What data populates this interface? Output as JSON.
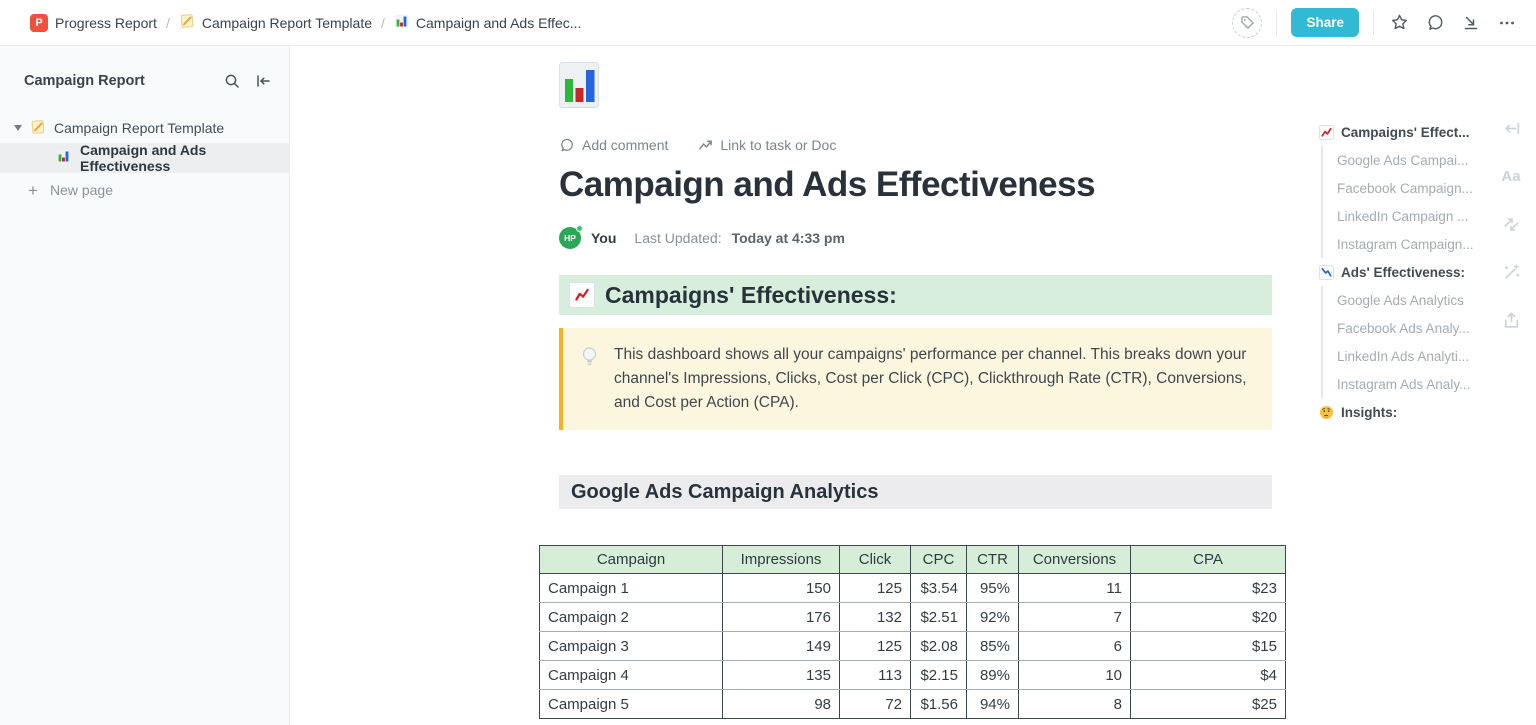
{
  "topbar": {
    "breadcrumb": [
      {
        "label": "Progress Report",
        "icon": "p-badge-icon"
      },
      {
        "label": "Campaign Report Template",
        "icon": "memo-icon"
      },
      {
        "label": "Campaign and Ads Effec...",
        "icon": "bar-chart-icon"
      }
    ],
    "separator": "/",
    "share_label": "Share"
  },
  "sidebar": {
    "title": "Campaign Report",
    "tree": [
      {
        "label": "Campaign Report Template",
        "icon": "memo-icon"
      },
      {
        "label": "Campaign and Ads Effectiveness",
        "icon": "bar-chart-icon",
        "selected": true
      }
    ],
    "new_page_label": "New page"
  },
  "document": {
    "actions": {
      "add_comment": "Add comment",
      "link_to_task": "Link to task or Doc"
    },
    "title": "Campaign and Ads Effectiveness",
    "author": {
      "initials": "HP",
      "name": "You"
    },
    "last_updated_label": "Last Updated:",
    "last_updated_value": "Today at 4:33 pm",
    "sections": [
      {
        "title": "Campaigns' Effectiveness:",
        "icon": "chart-up-icon",
        "style": "green"
      },
      {
        "title": "Google Ads Campaign Analytics",
        "style": "gray"
      }
    ],
    "callout": {
      "icon": "lightbulb-icon",
      "text": "This dashboard shows all your campaigns' performance per channel. This breaks down your channel's Impressions, Clicks, Cost per Click (CPC), Clickthrough Rate (CTR), Conversions, and Cost per Action (CPA)."
    },
    "table": {
      "headers": [
        "Campaign",
        "Impressions",
        "Click",
        "CPC",
        "CTR",
        "Conversions",
        "CPA"
      ],
      "rows": [
        [
          "Campaign 1",
          "150",
          "125",
          "$3.54",
          "95%",
          "11",
          "$23"
        ],
        [
          "Campaign 2",
          "176",
          "132",
          "$2.51",
          "92%",
          "7",
          "$20"
        ],
        [
          "Campaign 3",
          "149",
          "125",
          "$2.08",
          "85%",
          "6",
          "$15"
        ],
        [
          "Campaign 4",
          "135",
          "113",
          "$2.15",
          "89%",
          "10",
          "$4"
        ],
        [
          "Campaign 5",
          "98",
          "72",
          "$1.56",
          "94%",
          "8",
          "$25"
        ]
      ]
    }
  },
  "outline": {
    "items": [
      {
        "label": "Campaigns' Effect...",
        "icon": "chart-up-icon",
        "level": 1
      },
      {
        "label": "Google Ads Campai...",
        "level": 2
      },
      {
        "label": "Facebook Campaign...",
        "level": 2
      },
      {
        "label": "LinkedIn Campaign ...",
        "level": 2
      },
      {
        "label": "Instagram Campaign...",
        "level": 2
      },
      {
        "label": "Ads' Effectiveness:",
        "icon": "chart-down-icon",
        "level": 1
      },
      {
        "label": "Google Ads Analytics",
        "level": 2
      },
      {
        "label": "Facebook Ads Analy...",
        "level": 2
      },
      {
        "label": "LinkedIn Ads Analyti...",
        "level": 2
      },
      {
        "label": "Instagram Ads Analy...",
        "level": 2
      },
      {
        "label": "Insights:",
        "icon": "thinking-face-icon",
        "level": 1
      }
    ]
  },
  "colors": {
    "accent_share": "#31bad4",
    "section_green_bg": "#d7eedd",
    "table_header_bg": "#d6eed8",
    "section_gray_bg": "#ececee",
    "callout_bg": "#fdf6df",
    "callout_border": "#f6b026",
    "avatar_green": "#2aa857",
    "breadcrumb_badge": "#f1503a"
  }
}
